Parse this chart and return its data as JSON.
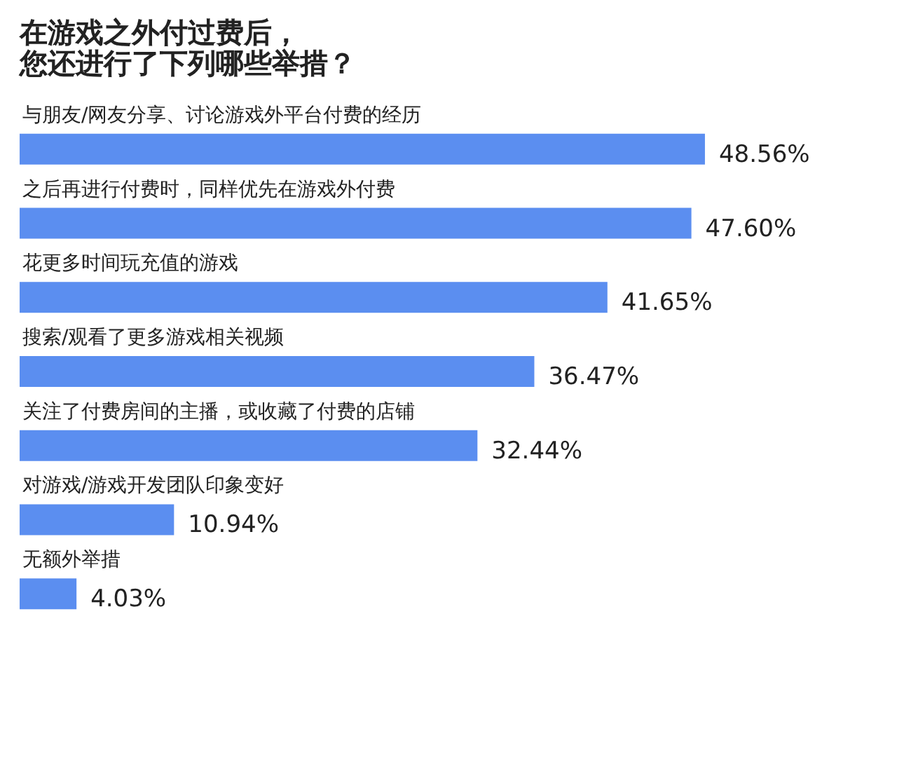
{
  "chart_data": {
    "type": "bar",
    "orientation": "horizontal",
    "title": "在游戏之外付过费后，您还进行了下列哪些举措？",
    "categories": [
      "与朋友/网友分享、讨论游戏外平台付费的经历",
      "之后再进行付费时，同样优先在游戏外付费",
      "花更多时间玩充值的游戏",
      "搜索/观看了更多游戏相关视频",
      "关注了付费房间的主播，或收藏了付费的店铺",
      "对游戏/游戏开发团队印象变好",
      "无额外举措"
    ],
    "values": [
      48.56,
      47.6,
      41.65,
      36.47,
      32.44,
      10.94,
      4.03
    ],
    "value_labels": [
      "48.56%",
      "47.60%",
      "41.65%",
      "36.47%",
      "32.44%",
      "10.94%",
      "4.03%"
    ],
    "color": "#5b8ef0"
  }
}
